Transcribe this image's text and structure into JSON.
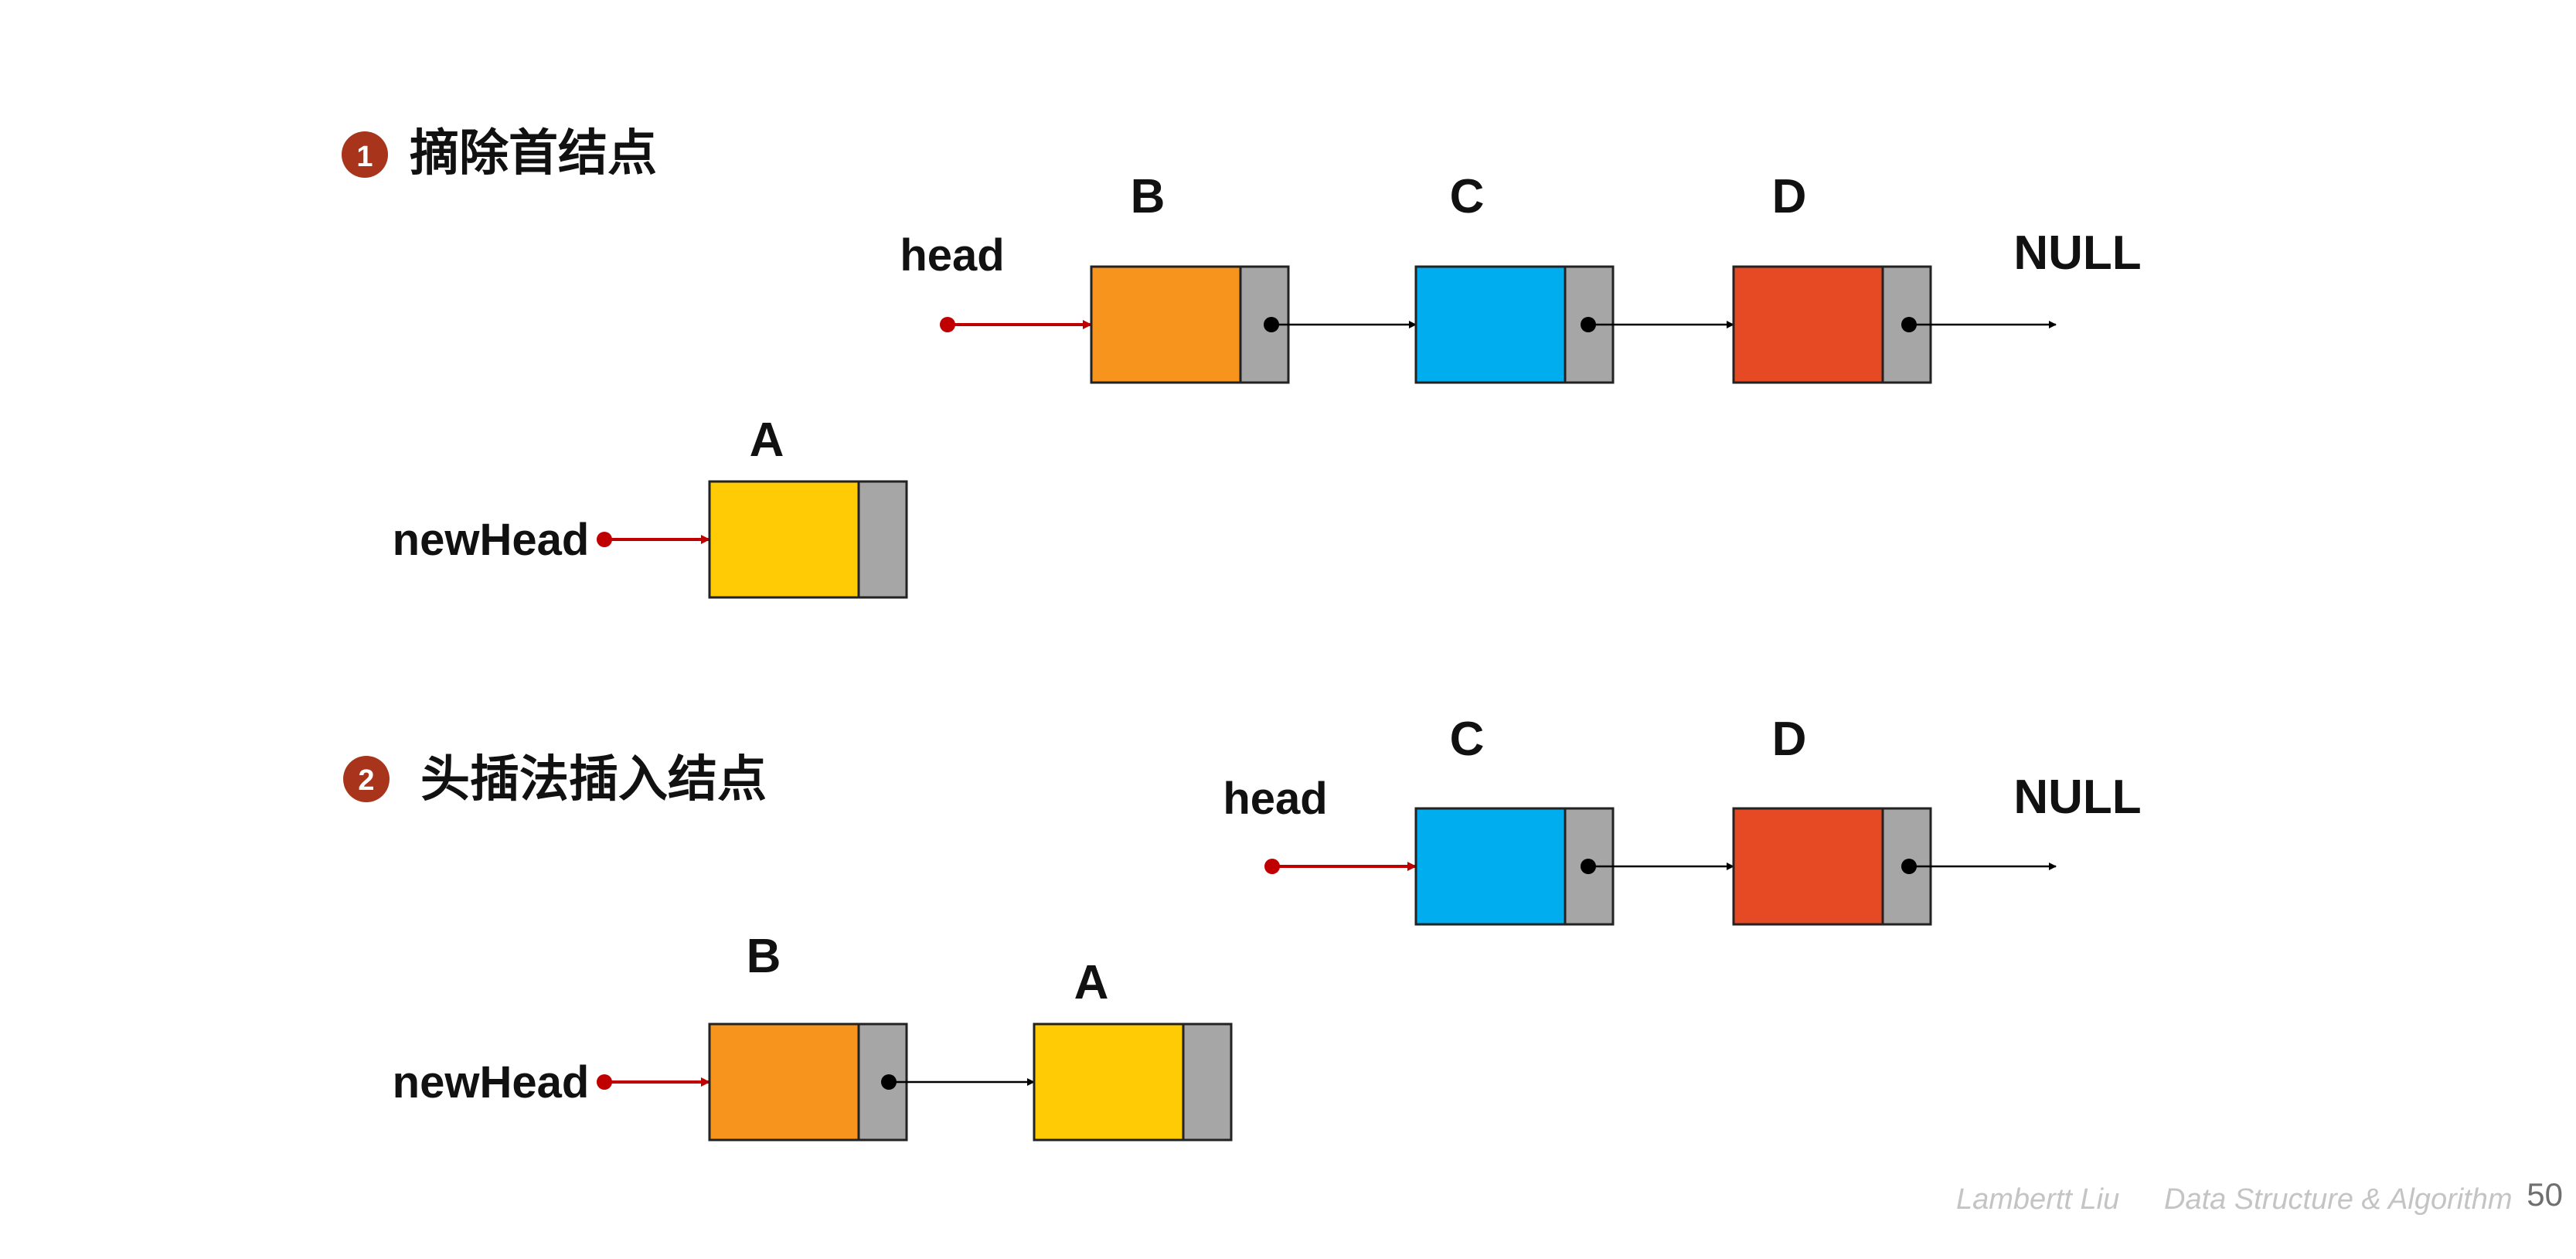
{
  "colors": {
    "orange": "#F7941D",
    "blue": "#00AEEF",
    "red": "#E64A24",
    "yellow": "#FFCB05",
    "pointer_cell": "#A6A6A6",
    "head_arrow": "#C00000",
    "badge": "#A8341C"
  },
  "steps": [
    {
      "badge": "1",
      "title": "摘除首结点",
      "head_label": "head",
      "null_label": "NULL",
      "head_nodes": [
        {
          "label": "B",
          "color": "orange"
        },
        {
          "label": "C",
          "color": "blue"
        },
        {
          "label": "D",
          "color": "red"
        }
      ],
      "new_head_label": "newHead",
      "new_nodes": [
        {
          "label": "A",
          "color": "yellow"
        }
      ]
    },
    {
      "badge": "2",
      "title": "头插法插入结点",
      "head_label": "head",
      "null_label": "NULL",
      "head_nodes": [
        {
          "label": "C",
          "color": "blue"
        },
        {
          "label": "D",
          "color": "red"
        }
      ],
      "new_head_label": "newHead",
      "new_nodes": [
        {
          "label": "B",
          "color": "orange"
        },
        {
          "label": "A",
          "color": "yellow"
        }
      ]
    }
  ],
  "footer": {
    "author": "Lambertt Liu",
    "course": "Data Structure & Algorithm",
    "page": "50"
  }
}
